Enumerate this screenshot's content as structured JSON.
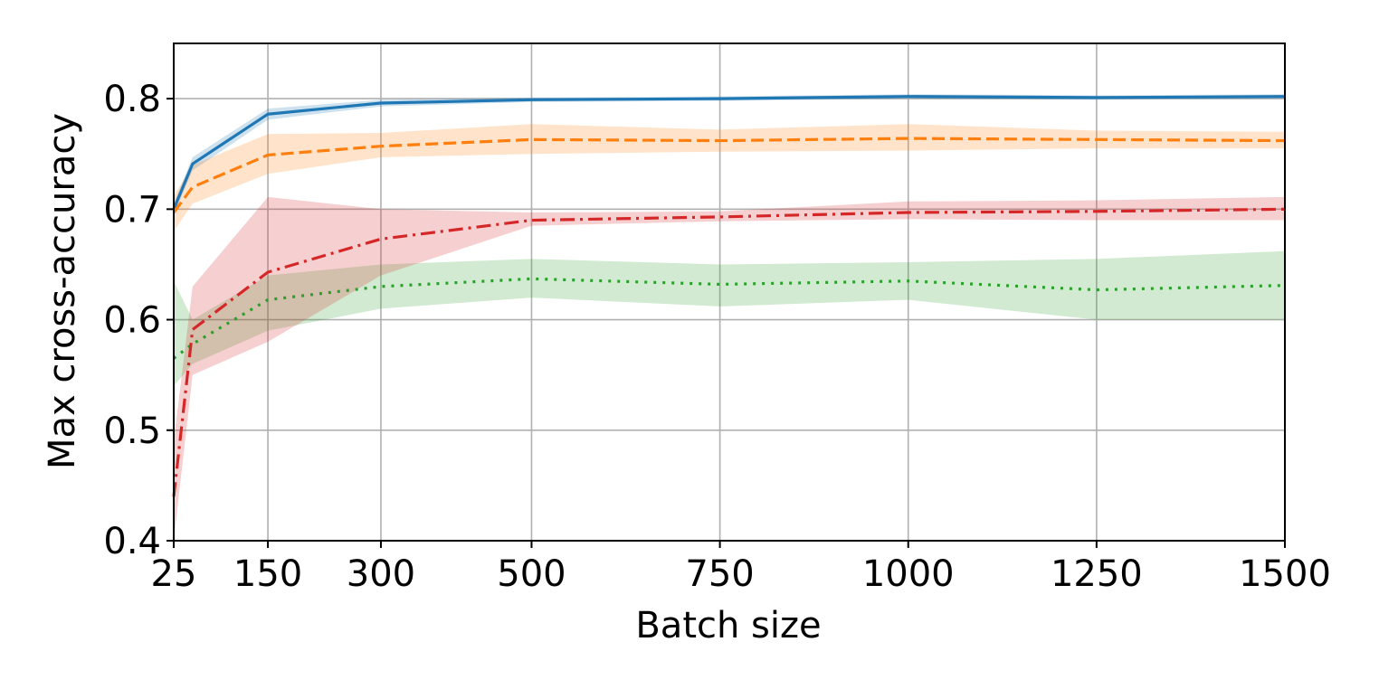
{
  "chart_data": {
    "type": "line",
    "title": "",
    "xlabel": "Batch size",
    "ylabel": "Max cross-accuracy",
    "xlim": [
      25,
      1500
    ],
    "ylim": [
      0.4,
      0.85
    ],
    "grid": true,
    "x_ticks": [
      25,
      150,
      300,
      500,
      750,
      1000,
      1250,
      1500
    ],
    "x_tick_labels": [
      "25",
      "150",
      "300",
      "500",
      "750",
      "1000",
      "1250",
      "1500"
    ],
    "y_ticks": [
      0.4,
      0.5,
      0.6,
      0.7,
      0.8
    ],
    "y_tick_labels": [
      "0.4",
      "0.5",
      "0.6",
      "0.7",
      "0.8"
    ],
    "x": [
      25,
      50,
      150,
      300,
      500,
      750,
      1000,
      1250,
      1500
    ],
    "series": [
      {
        "color": "#1f77b4",
        "linestyle": "solid",
        "values": [
          0.7,
          0.741,
          0.786,
          0.796,
          0.799,
          0.8,
          0.802,
          0.801,
          0.802
        ],
        "lower": [
          0.695,
          0.735,
          0.781,
          0.793,
          0.797,
          0.798,
          0.8,
          0.799,
          0.8
        ],
        "upper": [
          0.705,
          0.747,
          0.791,
          0.799,
          0.801,
          0.802,
          0.804,
          0.803,
          0.804
        ]
      },
      {
        "color": "#ff7f0e",
        "linestyle": "dashed",
        "values": [
          0.697,
          0.72,
          0.749,
          0.757,
          0.763,
          0.762,
          0.764,
          0.763,
          0.762
        ],
        "lower": [
          0.68,
          0.705,
          0.732,
          0.747,
          0.75,
          0.752,
          0.753,
          0.755,
          0.755
        ],
        "upper": [
          0.712,
          0.74,
          0.768,
          0.769,
          0.777,
          0.772,
          0.777,
          0.771,
          0.77
        ]
      },
      {
        "color": "#2ca02c",
        "linestyle": "dotted",
        "values": [
          0.565,
          0.578,
          0.618,
          0.63,
          0.637,
          0.632,
          0.635,
          0.627,
          0.631
        ],
        "lower": [
          0.54,
          0.56,
          0.59,
          0.61,
          0.62,
          0.612,
          0.618,
          0.6,
          0.6
        ],
        "upper": [
          0.635,
          0.6,
          0.64,
          0.65,
          0.655,
          0.65,
          0.652,
          0.655,
          0.662
        ]
      },
      {
        "color": "#d62728",
        "linestyle": "dashdot",
        "values": [
          0.44,
          0.591,
          0.643,
          0.673,
          0.69,
          0.693,
          0.697,
          0.698,
          0.7
        ],
        "lower": [
          0.4,
          0.55,
          0.58,
          0.64,
          0.685,
          0.689,
          0.691,
          0.69,
          0.69
        ],
        "upper": [
          0.49,
          0.63,
          0.711,
          0.7,
          0.697,
          0.698,
          0.707,
          0.708,
          0.711
        ]
      }
    ]
  }
}
